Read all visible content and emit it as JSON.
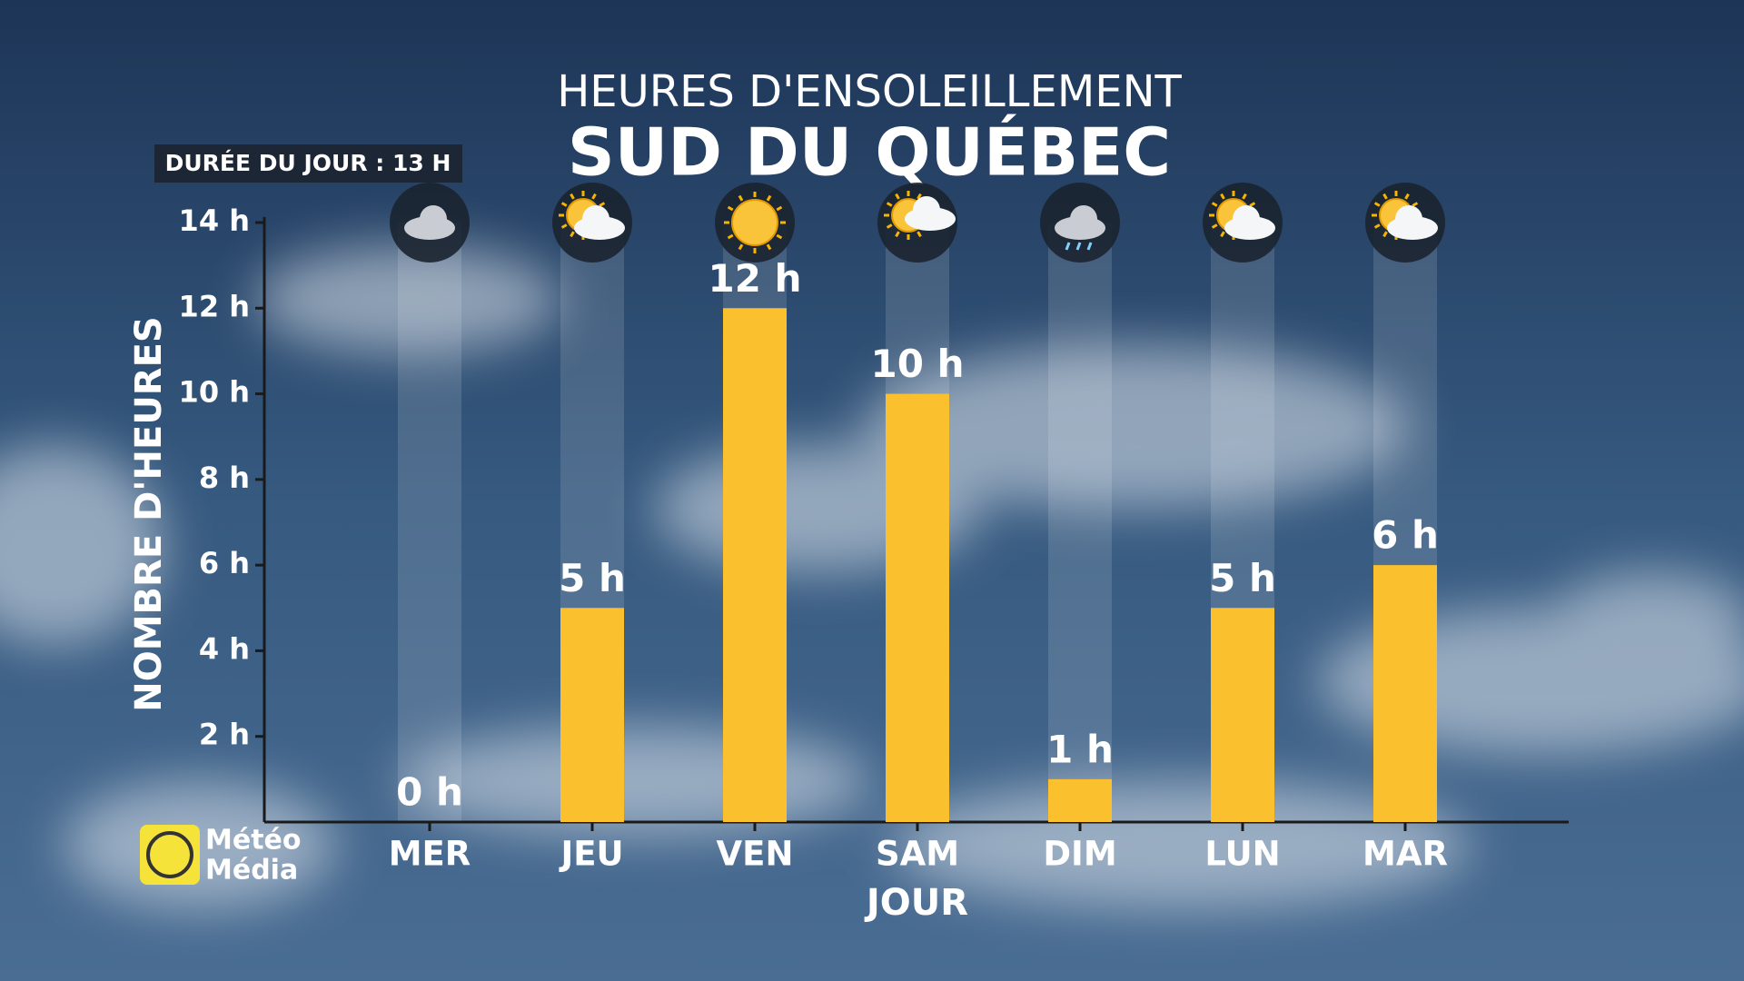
{
  "chart_data": {
    "type": "bar",
    "supertitle": "HEURES D'ENSOLEILLEMENT",
    "title": "SUD DU QUÉBEC",
    "badge": "DURÉE DU JOUR : 13 H",
    "ylabel": "NOMBRE D'HEURES",
    "xlabel": "JOUR",
    "logo": [
      "Météo",
      "Média"
    ],
    "categories": [
      "MER",
      "JEU",
      "VEN",
      "SAM",
      "DIM",
      "LUN",
      "MAR"
    ],
    "values": [
      0,
      5,
      12,
      10,
      1,
      5,
      6
    ],
    "value_labels": [
      "0 h",
      "5 h",
      "12 h",
      "10 h",
      "1 h",
      "5 h",
      "6 h"
    ],
    "color": "#fbc02d",
    "ylim": [
      0,
      14
    ],
    "yticks": [
      {
        "value": 2,
        "label": "2 h"
      },
      {
        "value": 4,
        "label": "4 h"
      },
      {
        "value": 6,
        "label": "6 h"
      },
      {
        "value": 8,
        "label": "8 h"
      },
      {
        "value": 10,
        "label": "10 h"
      },
      {
        "value": 12,
        "label": "12 h"
      },
      {
        "value": 14,
        "label": "14 h"
      }
    ]
  }
}
